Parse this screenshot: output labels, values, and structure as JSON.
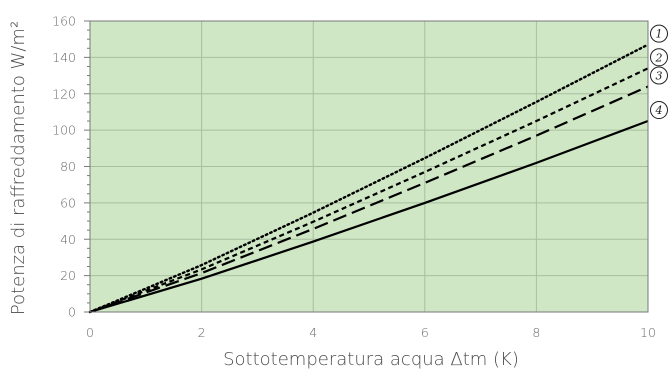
{
  "chart_data": {
    "type": "line",
    "title": "",
    "xlabel": "Sottotemperatura acqua Δtm (K)",
    "ylabel": "Potenza di raffreddamento W/m²",
    "xlim": [
      0,
      10
    ],
    "ylim": [
      0,
      160
    ],
    "xticks": [
      0,
      2,
      4,
      6,
      8,
      10
    ],
    "yticks": [
      0,
      20,
      40,
      60,
      80,
      100,
      120,
      140,
      160
    ],
    "grid": true,
    "background_color": "#cfe7c4",
    "grid_color": "#a9bfa0",
    "line_color": "#000000",
    "series": [
      {
        "name": "1",
        "style": "dotted",
        "x": [
          0,
          2,
          4,
          6,
          8,
          10
        ],
        "values": [
          0,
          25.8,
          54.6,
          84.6,
          115.5,
          147
        ]
      },
      {
        "name": "2",
        "style": "short-dash",
        "x": [
          0,
          2,
          4,
          6,
          8,
          10
        ],
        "values": [
          0,
          23.4,
          49.6,
          77,
          105,
          134
        ]
      },
      {
        "name": "3",
        "style": "long-dash",
        "x": [
          0,
          2,
          4,
          6,
          8,
          10
        ],
        "values": [
          0,
          21.4,
          45.7,
          71,
          97,
          124
        ]
      },
      {
        "name": "4",
        "style": "solid",
        "x": [
          0,
          2,
          4,
          6,
          8,
          10
        ],
        "values": [
          0,
          18.3,
          38.7,
          60,
          82,
          105
        ]
      }
    ]
  }
}
